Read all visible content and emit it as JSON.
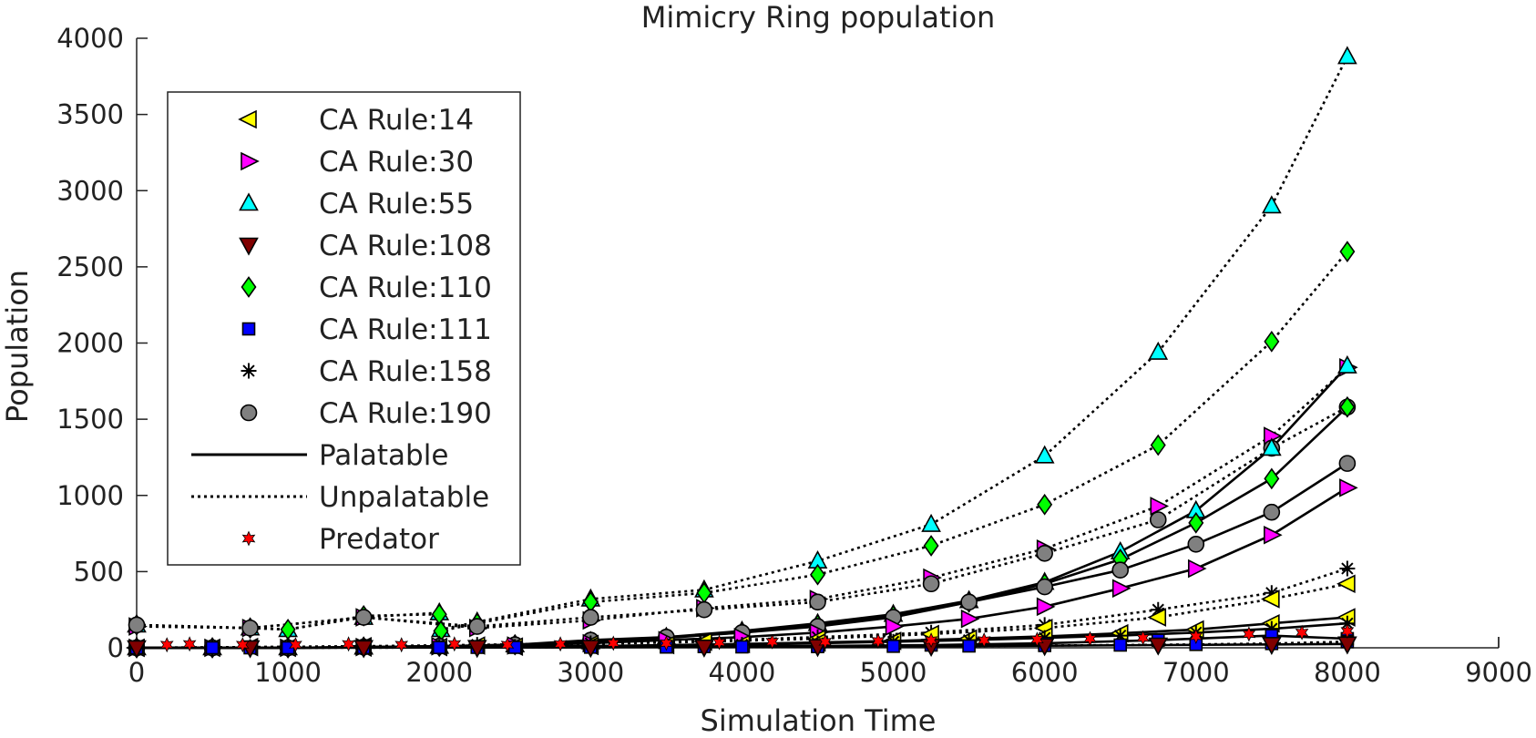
{
  "chart_data": {
    "type": "line",
    "title": "Mimicry Ring population",
    "xlabel": "Simulation Time",
    "ylabel": "Population",
    "xlim": [
      0,
      9000
    ],
    "ylim": [
      0,
      4000
    ],
    "xticks": [
      "0",
      "1000",
      "2000",
      "3000",
      "4000",
      "5000",
      "6000",
      "7000",
      "8000",
      "9000"
    ],
    "yticks": [
      "0",
      "500",
      "1000",
      "1500",
      "2000",
      "2500",
      "3000",
      "3500",
      "4000"
    ],
    "grid": false,
    "legend_position": "top-left",
    "legend": [
      {
        "label": "CA Rule:14",
        "marker": "triangle-left",
        "color": "#ffff00"
      },
      {
        "label": "CA Rule:30",
        "marker": "triangle-right",
        "color": "#ff00ff"
      },
      {
        "label": "CA Rule:55",
        "marker": "triangle-up",
        "color": "#00ffff"
      },
      {
        "label": "CA Rule:108",
        "marker": "triangle-down",
        "color": "#800000"
      },
      {
        "label": "CA Rule:110",
        "marker": "diamond",
        "color": "#00ff00"
      },
      {
        "label": "CA Rule:111",
        "marker": "square",
        "color": "#0000ff"
      },
      {
        "label": "CA Rule:158",
        "marker": "asterisk",
        "color": "#000000"
      },
      {
        "label": "CA Rule:190",
        "marker": "circle",
        "color": "#808080"
      },
      {
        "label": "Palatable",
        "marker": "solid-line",
        "color": "#000000"
      },
      {
        "label": "Unpalatable",
        "marker": "dotted-line",
        "color": "#000000"
      },
      {
        "label": "Predator",
        "marker": "hexagram",
        "color": "#ff0000"
      }
    ],
    "series": [
      {
        "rule": "CA Rule:55",
        "style": "dotted",
        "marker": "triangle-up",
        "color": "#00ffff",
        "x": [
          0,
          750,
          1000,
          1500,
          2000,
          2010,
          2250,
          3000,
          3750,
          4500,
          5250,
          6000,
          6750,
          7500,
          8000
        ],
        "y": [
          150,
          130,
          120,
          200,
          230,
          120,
          170,
          320,
          380,
          570,
          810,
          1260,
          1940,
          2900,
          3880
        ]
      },
      {
        "rule": "CA Rule:110",
        "style": "dotted",
        "marker": "diamond",
        "color": "#00ff00",
        "x": [
          0,
          750,
          1000,
          1500,
          2000,
          2010,
          2250,
          3000,
          3750,
          4500,
          5250,
          6000,
          6750,
          7500,
          8000
        ],
        "y": [
          150,
          130,
          120,
          210,
          220,
          110,
          160,
          300,
          360,
          480,
          670,
          940,
          1330,
          2010,
          2600
        ]
      },
      {
        "rule": "CA Rule:30",
        "style": "dotted",
        "marker": "triangle-right",
        "color": "#ff00ff",
        "x": [
          0,
          750,
          1500,
          2250,
          3000,
          3750,
          4500,
          5250,
          6000,
          6750,
          7500,
          8000
        ],
        "y": [
          140,
          130,
          200,
          130,
          180,
          260,
          320,
          460,
          650,
          930,
          1390,
          1840
        ]
      },
      {
        "rule": "CA Rule:190",
        "style": "dotted",
        "marker": "circle",
        "color": "#808080",
        "x": [
          0,
          750,
          1500,
          2250,
          3000,
          3750,
          4500,
          5250,
          6000,
          6750,
          7500,
          8000
        ],
        "y": [
          150,
          130,
          200,
          140,
          200,
          250,
          300,
          420,
          620,
          840,
          1310,
          1580
        ]
      },
      {
        "rule": "CA Rule:55",
        "style": "solid",
        "marker": "triangle-up",
        "color": "#00ffff",
        "x": [
          0,
          500,
          1000,
          1500,
          2000,
          2500,
          3000,
          3500,
          4000,
          4500,
          5000,
          5500,
          6000,
          6500,
          7000,
          7500,
          8000
        ],
        "y": [
          0,
          0,
          0,
          5,
          10,
          20,
          40,
          70,
          110,
          160,
          220,
          310,
          430,
          630,
          900,
          1310,
          1850
        ]
      },
      {
        "rule": "CA Rule:110",
        "style": "solid",
        "marker": "diamond",
        "color": "#00ff00",
        "x": [
          0,
          500,
          1000,
          1500,
          2000,
          2500,
          3000,
          3500,
          4000,
          4500,
          5000,
          5500,
          6000,
          6500,
          7000,
          7500,
          8000
        ],
        "y": [
          0,
          0,
          0,
          5,
          10,
          20,
          40,
          65,
          100,
          150,
          210,
          300,
          420,
          580,
          820,
          1110,
          1580
        ]
      },
      {
        "rule": "CA Rule:190",
        "style": "solid",
        "marker": "circle",
        "color": "#808080",
        "x": [
          0,
          500,
          1000,
          1500,
          2000,
          2500,
          3000,
          3500,
          4000,
          4500,
          5000,
          5500,
          6000,
          6500,
          7000,
          7500,
          8000
        ],
        "y": [
          0,
          0,
          0,
          5,
          10,
          20,
          50,
          70,
          100,
          140,
          200,
          300,
          400,
          510,
          680,
          890,
          1210
        ]
      },
      {
        "rule": "CA Rule:30",
        "style": "solid",
        "marker": "triangle-right",
        "color": "#ff00ff",
        "x": [
          0,
          500,
          1000,
          1500,
          2000,
          2500,
          3000,
          3500,
          4000,
          4500,
          5000,
          5500,
          6000,
          6500,
          7000,
          7500,
          8000
        ],
        "y": [
          0,
          0,
          0,
          5,
          10,
          15,
          30,
          50,
          70,
          100,
          140,
          190,
          270,
          390,
          520,
          740,
          1050
        ]
      },
      {
        "rule": "CA Rule:158",
        "style": "dotted",
        "marker": "asterisk",
        "color": "#000000",
        "x": [
          0,
          750,
          1500,
          2250,
          3000,
          3750,
          4500,
          5250,
          6000,
          6750,
          7500,
          8000
        ],
        "y": [
          0,
          5,
          10,
          20,
          30,
          45,
          70,
          100,
          150,
          250,
          360,
          520
        ]
      },
      {
        "rule": "CA Rule:14",
        "style": "dotted",
        "marker": "triangle-left",
        "color": "#ffff00",
        "x": [
          0,
          750,
          1500,
          2250,
          3000,
          3750,
          4500,
          5250,
          6000,
          6750,
          7500,
          8000
        ],
        "y": [
          0,
          5,
          10,
          15,
          25,
          40,
          60,
          90,
          130,
          200,
          320,
          420
        ]
      },
      {
        "rule": "CA Rule:14",
        "style": "solid",
        "marker": "triangle-left",
        "color": "#ffff00",
        "x": [
          0,
          500,
          1000,
          1500,
          2000,
          2500,
          3000,
          3500,
          4000,
          4500,
          5000,
          5500,
          6000,
          6500,
          7000,
          7500,
          8000
        ],
        "y": [
          0,
          0,
          0,
          2,
          5,
          8,
          12,
          18,
          25,
          35,
          45,
          60,
          75,
          95,
          120,
          160,
          200
        ]
      },
      {
        "rule": "CA Rule:158",
        "style": "solid",
        "marker": "asterisk",
        "color": "#000000",
        "x": [
          0,
          500,
          1000,
          1500,
          2000,
          2500,
          3000,
          3500,
          4000,
          4500,
          5000,
          5500,
          6000,
          6500,
          7000,
          7500,
          8000
        ],
        "y": [
          0,
          0,
          0,
          2,
          4,
          6,
          10,
          15,
          20,
          30,
          40,
          50,
          65,
          80,
          100,
          125,
          160
        ]
      },
      {
        "rule": "CA Rule:111",
        "style": "solid",
        "marker": "square",
        "color": "#0000ff",
        "x": [
          0,
          750,
          1500,
          2250,
          3000,
          3750,
          4500,
          5250,
          6000,
          6750,
          7500,
          8000
        ],
        "y": [
          0,
          0,
          2,
          3,
          5,
          8,
          12,
          18,
          30,
          50,
          80,
          60
        ]
      },
      {
        "rule": "CA Rule:111",
        "style": "dotted",
        "marker": "square",
        "color": "#0000ff",
        "x": [
          0,
          500,
          1000,
          1500,
          2000,
          2500,
          3000,
          3500,
          4000,
          4500,
          5000,
          5500,
          6000,
          6500,
          7000,
          7500,
          8000
        ],
        "y": [
          0,
          0,
          0,
          1,
          2,
          3,
          4,
          5,
          6,
          8,
          10,
          12,
          15,
          18,
          22,
          28,
          40
        ]
      },
      {
        "rule": "CA Rule:108",
        "style": "solid",
        "marker": "triangle-down",
        "color": "#800000",
        "x": [
          0,
          750,
          1500,
          2250,
          3000,
          3750,
          4500,
          5250,
          6000,
          6750,
          7500,
          8000
        ],
        "y": [
          0,
          0,
          1,
          2,
          3,
          5,
          8,
          10,
          14,
          18,
          22,
          25
        ]
      },
      {
        "rule": "Predator",
        "style": "none",
        "marker": "hexagram",
        "color": "#ff0000",
        "x": [
          200,
          350,
          700,
          1050,
          1400,
          1750,
          2100,
          2450,
          2800,
          3150,
          3500,
          3850,
          4200,
          4550,
          4900,
          5250,
          5600,
          5950,
          6300,
          6650,
          7000,
          7350,
          7700,
          8000
        ],
        "y": [
          20,
          25,
          20,
          20,
          25,
          20,
          25,
          20,
          25,
          30,
          30,
          35,
          40,
          40,
          45,
          50,
          50,
          55,
          60,
          65,
          75,
          90,
          100,
          110
        ]
      }
    ]
  }
}
